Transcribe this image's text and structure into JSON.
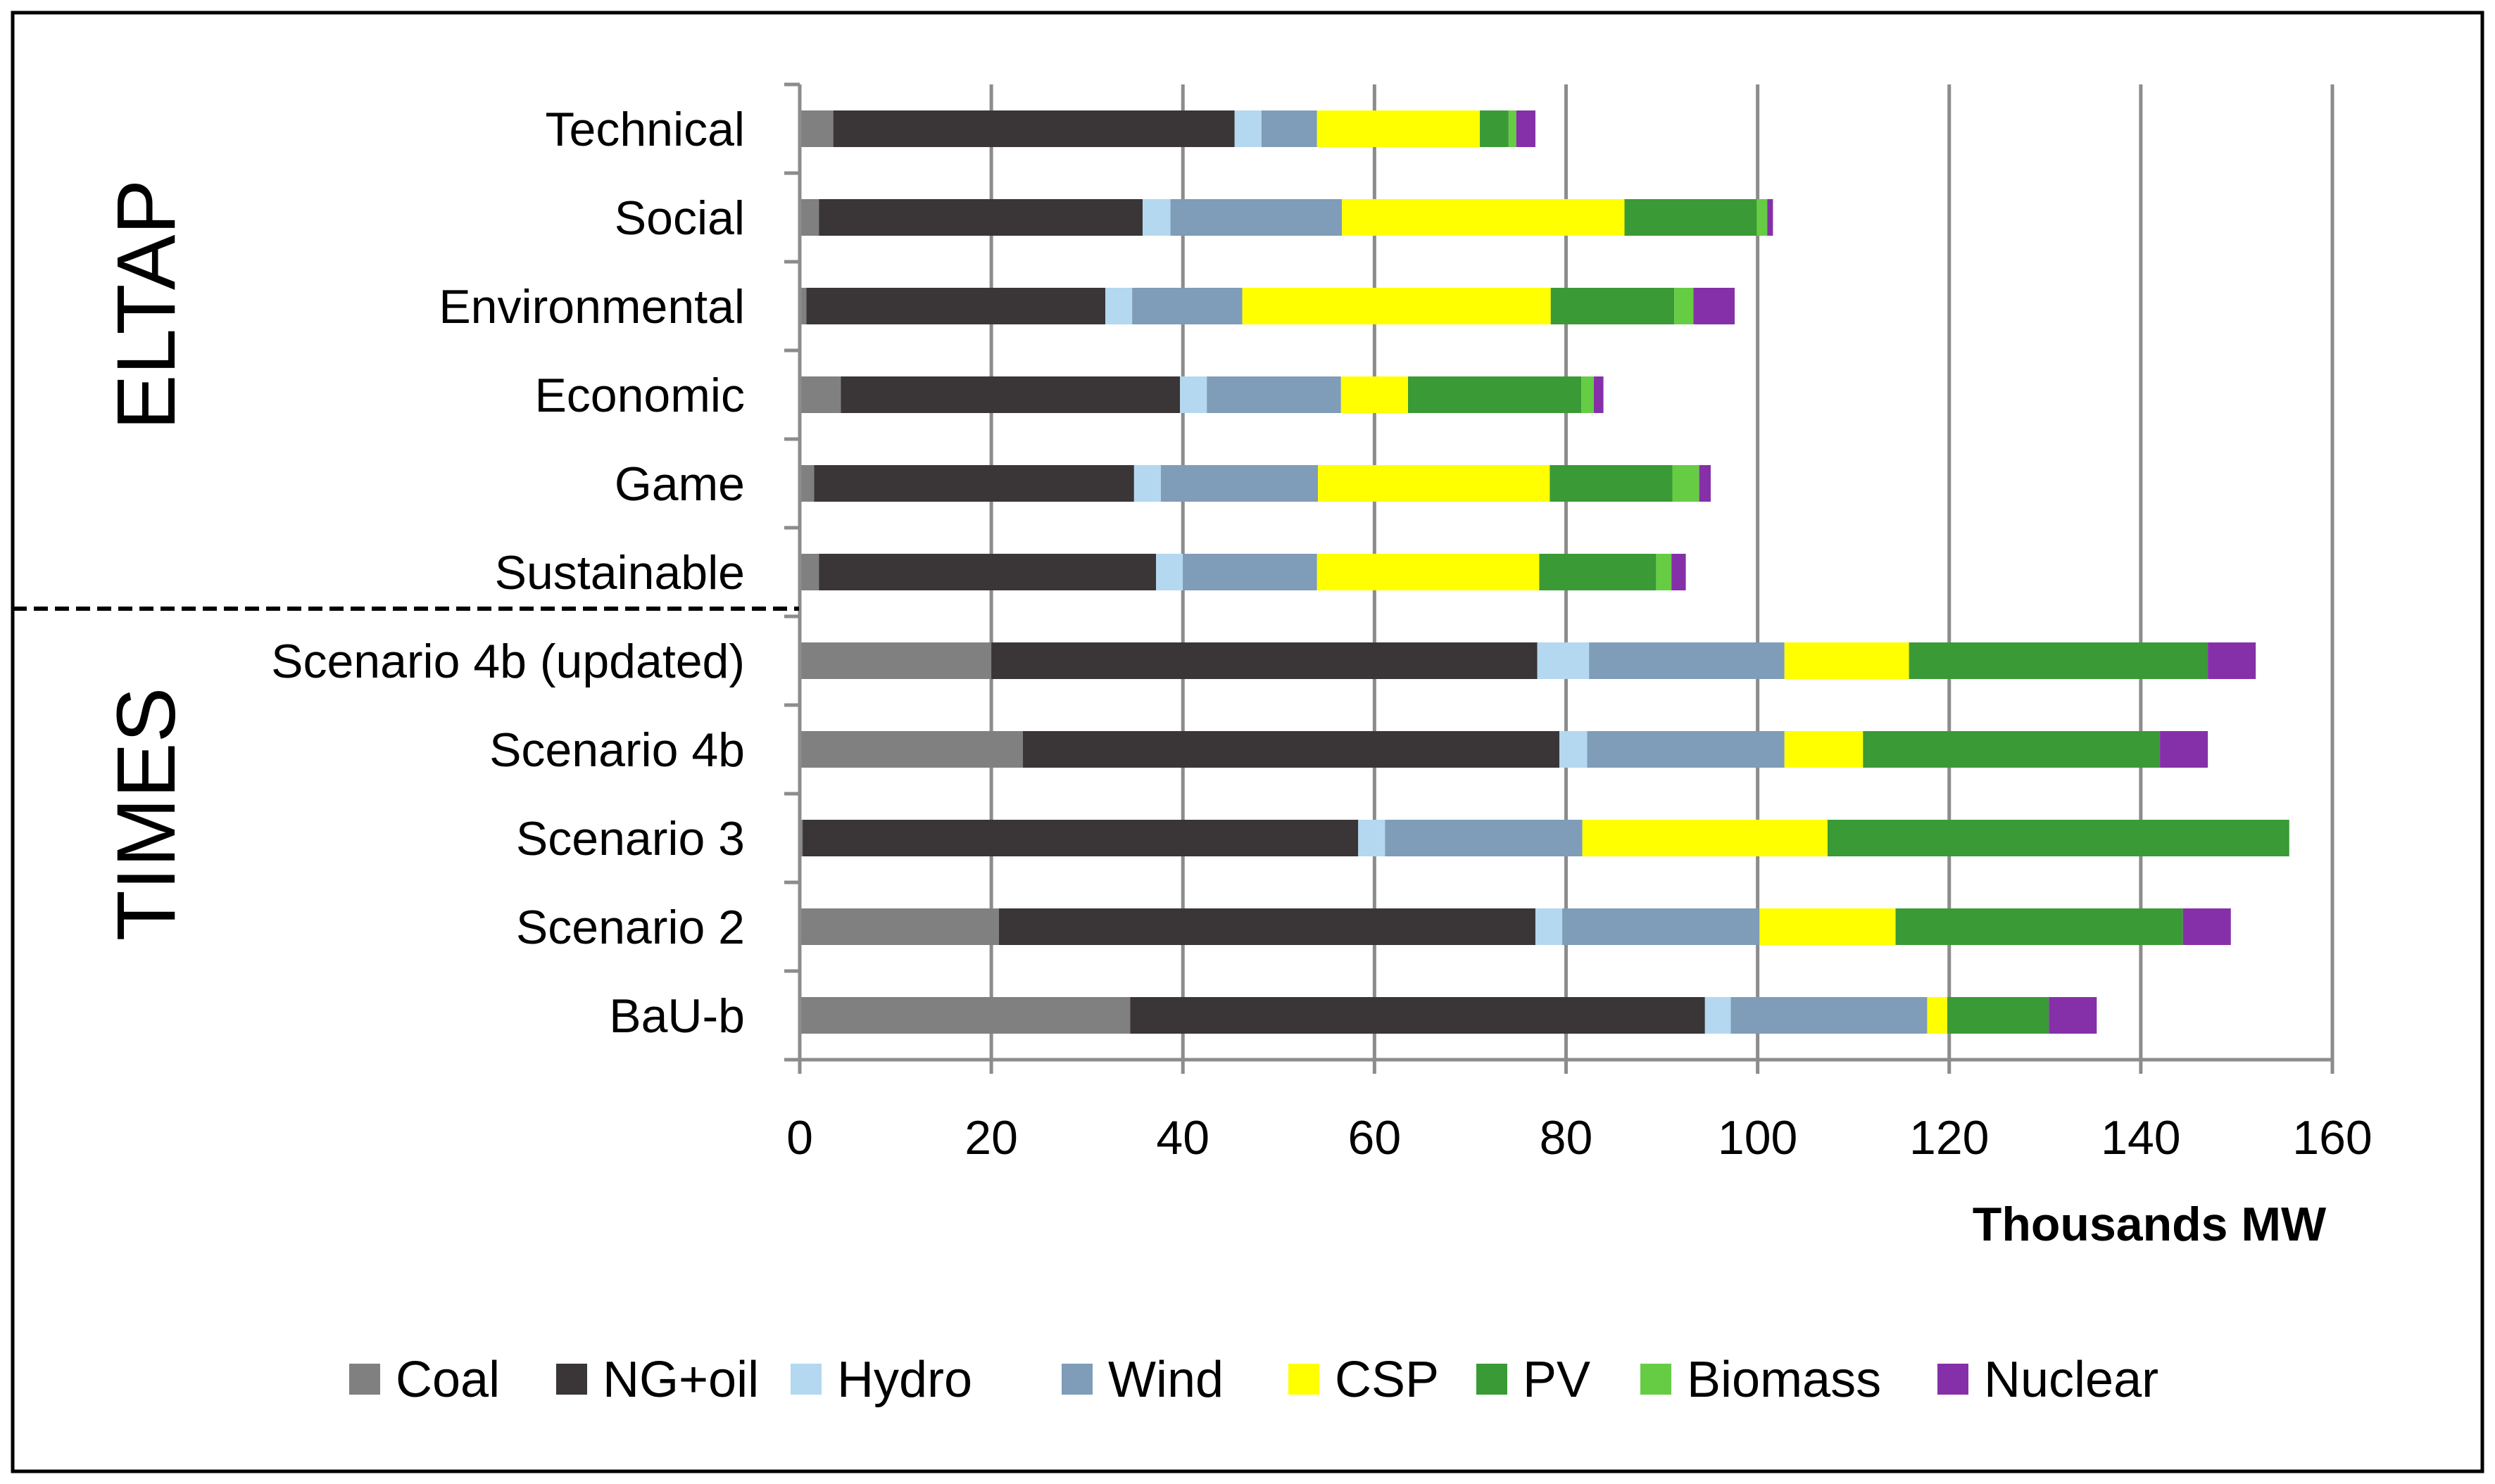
{
  "chart_data": {
    "type": "bar",
    "orientation": "horizontal",
    "stacked": true,
    "title": "",
    "xlabel": "Thousands MW",
    "ylabel": "",
    "xlim": [
      0,
      160
    ],
    "xticks": [
      0,
      20,
      40,
      60,
      80,
      100,
      120,
      140,
      160
    ],
    "grid": "vertical",
    "legend_position": "bottom",
    "groups": [
      {
        "label": "ELTAP",
        "categories": [
          "Technical",
          "Social",
          "Environmental",
          "Economic",
          "Game",
          "Sustainable"
        ]
      },
      {
        "label": "TIMES",
        "categories": [
          "Scenario 4b (updated)",
          "Scenario 4b",
          "Scenario 3",
          "Scenario 2",
          "BaU-b"
        ]
      }
    ],
    "categories": [
      "Technical",
      "Social",
      "Environmental",
      "Economic",
      "Game",
      "Sustainable",
      "Scenario 4b (updated)",
      "Scenario 4b",
      "Scenario 3",
      "Scenario 2",
      "BaU-b"
    ],
    "series": [
      {
        "name": "Coal",
        "color": "#808080",
        "values": [
          3.5,
          2,
          0.7,
          4.3,
          1.5,
          2,
          20,
          23.3,
          0.3,
          20.8,
          34.5
        ]
      },
      {
        "name": "NG+oil",
        "color": "#3a3536",
        "values": [
          41.9,
          33.8,
          31.2,
          35.4,
          33.4,
          35.2,
          57,
          56,
          58,
          56,
          60
        ]
      },
      {
        "name": "Hydro",
        "color": "#b4d8f0",
        "values": [
          2.8,
          2.9,
          2.8,
          2.8,
          2.8,
          2.8,
          5.4,
          2.9,
          2.8,
          2.8,
          2.7
        ]
      },
      {
        "name": "Wind",
        "color": "#7f9cb8",
        "values": [
          5.8,
          17.9,
          11.5,
          14,
          16.4,
          14,
          20.4,
          20.6,
          20.6,
          20.6,
          20.5
        ]
      },
      {
        "name": "CSP",
        "color": "#ffff00",
        "values": [
          17,
          29.5,
          32.2,
          7,
          24.2,
          23.2,
          13,
          8.2,
          25.6,
          14.2,
          2.1
        ]
      },
      {
        "name": "PV",
        "color": "#3a9a36",
        "values": [
          3,
          13.8,
          12.9,
          18.1,
          12.8,
          12.2,
          31.2,
          31,
          48.2,
          30,
          10.6
        ]
      },
      {
        "name": "Biomass",
        "color": "#66cc44",
        "values": [
          0.8,
          1.1,
          2,
          1.3,
          2.8,
          1.6,
          0,
          0,
          0,
          0,
          0
        ]
      },
      {
        "name": "Nuclear",
        "color": "#8530a8",
        "values": [
          2,
          0.6,
          4.3,
          1,
          1.2,
          1.5,
          5,
          5,
          0,
          5,
          5
        ]
      }
    ]
  }
}
